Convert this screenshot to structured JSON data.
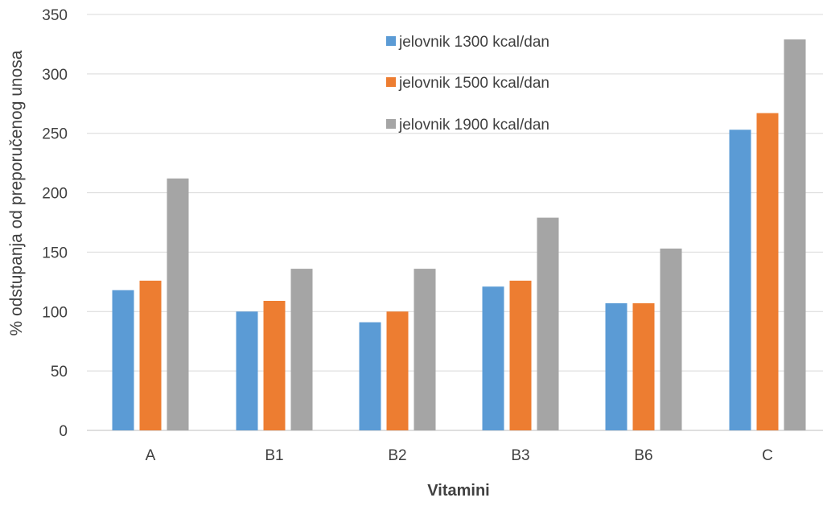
{
  "chart_data": {
    "type": "bar",
    "title": "",
    "xlabel": "Vitamini",
    "ylabel": "% odstupanja od preporučenog unosa",
    "categories": [
      "A",
      "B1",
      "B2",
      "B3",
      "B6",
      "C"
    ],
    "ylim": [
      0,
      350
    ],
    "yticks": [
      0,
      50,
      100,
      150,
      200,
      250,
      300,
      350
    ],
    "grid": true,
    "legend_position": "top-center",
    "series": [
      {
        "name": "jelovnik 1300 kcal/dan",
        "color": "#5B9BD5",
        "values": [
          118,
          100,
          91,
          121,
          107,
          253
        ]
      },
      {
        "name": "jelovnik 1500 kcal/dan",
        "color": "#ED7D31",
        "values": [
          126,
          109,
          100,
          126,
          107,
          267
        ]
      },
      {
        "name": "jelovnik 1900 kcal/dan",
        "color": "#A5A5A5",
        "values": [
          212,
          136,
          136,
          179,
          153,
          329
        ]
      }
    ]
  }
}
